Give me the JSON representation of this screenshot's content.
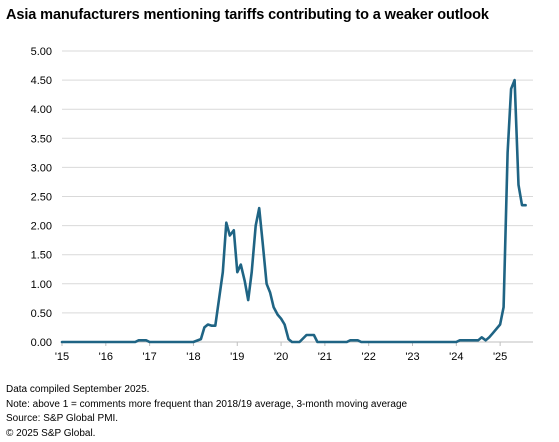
{
  "title": "Asia manufacturers mentioning tariffs contributing to a weaker outlook",
  "notes": [
    "Data compiled September 2025.",
    "Note: above 1 = comments more frequent than 2018/19 average, 3-month moving average",
    "Source: S&P Global PMI.",
    "© 2025 S&P Global."
  ],
  "colors": {
    "line": "#1f6484",
    "grid": "#d9d9d9",
    "axis": "#bfbfbf"
  },
  "chart_data": {
    "type": "line",
    "title": "Asia manufacturers mentioning tariffs contributing to a weaker outlook",
    "xlabel": "",
    "ylabel": "",
    "ylim": [
      0,
      5
    ],
    "xlim": [
      2015.0,
      2025.75
    ],
    "yticks": [
      "0.00",
      "0.50",
      "1.00",
      "1.50",
      "2.00",
      "2.50",
      "3.00",
      "3.50",
      "4.00",
      "4.50",
      "5.00"
    ],
    "xticks": [
      "'15",
      "'16",
      "'17",
      "'18",
      "'19",
      "'20",
      "'21",
      "'22",
      "'23",
      "'24",
      "'25"
    ],
    "grid": true,
    "legend": "none",
    "series": [
      {
        "x": [
          2015.0,
          2016.67,
          2016.75,
          2016.83,
          2016.92,
          2017.0,
          2018.0,
          2018.17,
          2018.25,
          2018.33,
          2018.42,
          2018.5,
          2018.67,
          2018.75,
          2018.83,
          2018.92,
          2019.0,
          2019.08,
          2019.17,
          2019.25,
          2019.33,
          2019.42,
          2019.5,
          2019.58,
          2019.67,
          2019.75,
          2019.83,
          2019.92,
          2020.0,
          2020.08,
          2020.17,
          2020.25,
          2020.42,
          2020.58,
          2020.67,
          2020.75,
          2020.83,
          2020.92,
          2021.5,
          2021.58,
          2021.67,
          2021.75,
          2021.83,
          2024.0,
          2024.08,
          2024.33,
          2024.42,
          2024.5,
          2024.58,
          2024.67,
          2024.75,
          2024.83,
          2025.0,
          2025.08,
          2025.17,
          2025.25,
          2025.33,
          2025.42,
          2025.5,
          2025.58
        ],
        "values": [
          0,
          0,
          0.03,
          0.03,
          0.03,
          0,
          0,
          0.05,
          0.25,
          0.3,
          0.28,
          0.28,
          1.2,
          2.05,
          1.83,
          1.92,
          1.2,
          1.33,
          1.05,
          0.72,
          1.2,
          2.0,
          2.3,
          1.7,
          1.0,
          0.85,
          0.6,
          0.47,
          0.4,
          0.3,
          0.05,
          0,
          0,
          0.12,
          0.12,
          0.12,
          0,
          0,
          0,
          0.03,
          0.03,
          0.03,
          0,
          0,
          0.03,
          0.03,
          0.03,
          0.03,
          0.08,
          0.03,
          0.08,
          0.15,
          0.3,
          0.6,
          3.25,
          4.35,
          4.5,
          2.7,
          2.35,
          2.35
        ]
      }
    ]
  }
}
